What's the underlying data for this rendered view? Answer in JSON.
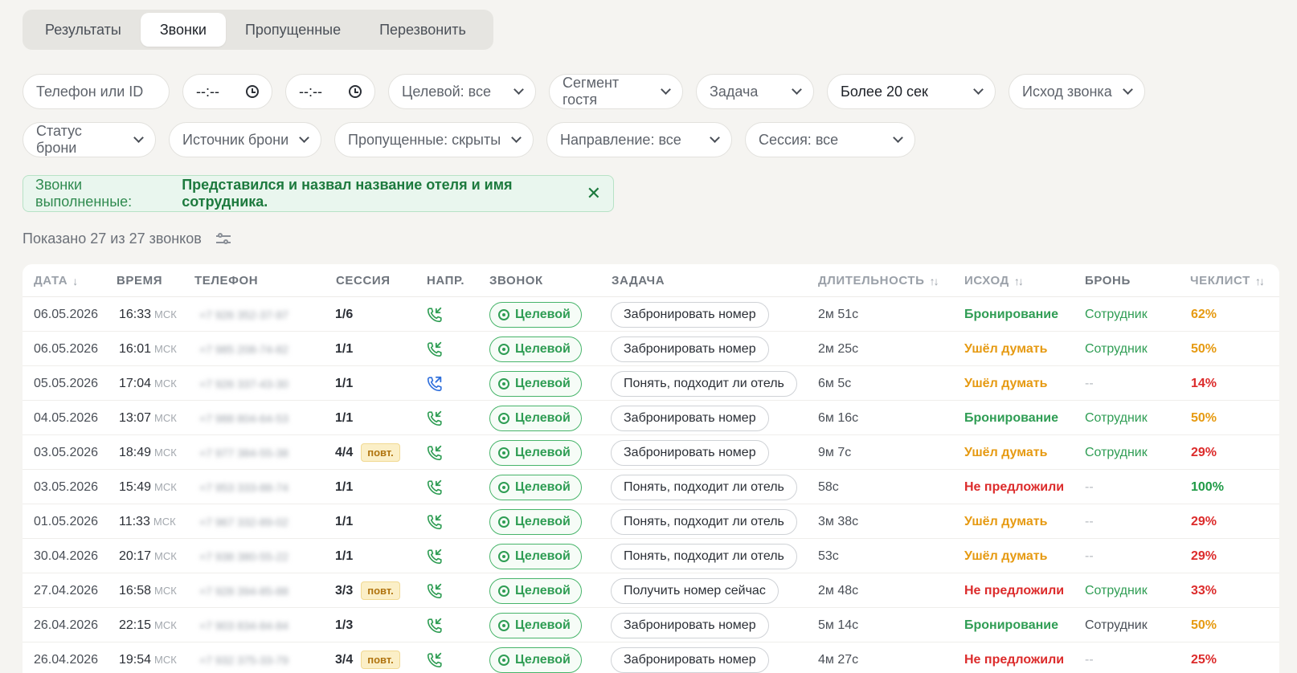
{
  "tabs": [
    "Результаты",
    "Звонки",
    "Пропущенные",
    "Перезвонить"
  ],
  "active_tab": 1,
  "filters": {
    "phone_placeholder": "Телефон или ID",
    "time_from": "--:--",
    "time_to": "--:--",
    "target": "Целевой: все",
    "segment": "Сегмент гостя",
    "task": "Задача",
    "duration": "Более 20 сек",
    "outcome": "Исход звонка",
    "booking_status": "Статус брони",
    "booking_source": "Источник брони",
    "missed": "Пропущенные: скрыты",
    "direction": "Направление: все",
    "session": "Сессия: все"
  },
  "banner": {
    "label": "Звонки выполненные:",
    "value": "Представился и назвал название отеля и имя сотрудника.",
    "close": "✕"
  },
  "count_text": "Показано 27 из 27 звонков",
  "columns": {
    "date": "ДАТА",
    "time": "ВРЕМЯ",
    "phone": "ТЕЛЕФОН",
    "session": "СЕССИЯ",
    "dir": "НАПР.",
    "call": "ЗВОНОК",
    "task": "ЗАДАЧА",
    "duration": "ДЛИТЕЛЬНОСТЬ",
    "outcome": "ИСХОД",
    "booking": "БРОНЬ",
    "checklist": "ЧЕКЛИСТ"
  },
  "icons": {
    "sort_down": "↓",
    "sort_both": "↑↓",
    "incoming": "incoming-call-icon",
    "outgoing": "outgoing-call-icon"
  },
  "colors": {
    "green": "#2f9d54",
    "orange": "#e69a12",
    "red": "#dc2b2b",
    "incoming": "#2f9d54",
    "outgoing": "#2f6fdc"
  },
  "rows": [
    {
      "date": "06.05.2026",
      "time": "16:33",
      "tz": "МСК",
      "phone": "+7 926 352-37-97",
      "session": "1/6",
      "repeat": "",
      "dir": "in",
      "call": "Целевой",
      "task": "Забронировать номер",
      "duration": "2м 51с",
      "outcome": "Бронирование",
      "outcome_color": "green",
      "booking": "Сотрудник",
      "booking_color": "green",
      "checklist": "62%",
      "checklist_color": "orange"
    },
    {
      "date": "06.05.2026",
      "time": "16:01",
      "tz": "МСК",
      "phone": "+7 985 208-74-82",
      "session": "1/1",
      "repeat": "",
      "dir": "in",
      "call": "Целевой",
      "task": "Забронировать номер",
      "duration": "2м 25с",
      "outcome": "Ушёл думать",
      "outcome_color": "orange",
      "booking": "Сотрудник",
      "booking_color": "green",
      "checklist": "50%",
      "checklist_color": "orange"
    },
    {
      "date": "05.05.2026",
      "time": "17:04",
      "tz": "МСК",
      "phone": "+7 926 337-43-30",
      "session": "1/1",
      "repeat": "",
      "dir": "out",
      "call": "Целевой",
      "task": "Понять, подходит ли отель",
      "duration": "6м 5с",
      "outcome": "Ушёл думать",
      "outcome_color": "orange",
      "booking": "--",
      "booking_color": "dash",
      "checklist": "14%",
      "checklist_color": "red"
    },
    {
      "date": "04.05.2026",
      "time": "13:07",
      "tz": "МСК",
      "phone": "+7 988 804-64-53",
      "session": "1/1",
      "repeat": "",
      "dir": "in",
      "call": "Целевой",
      "task": "Забронировать номер",
      "duration": "6м 16с",
      "outcome": "Бронирование",
      "outcome_color": "green",
      "booking": "Сотрудник",
      "booking_color": "green",
      "checklist": "50%",
      "checklist_color": "orange"
    },
    {
      "date": "03.05.2026",
      "time": "18:49",
      "tz": "МСК",
      "phone": "+7 977 384-55-38",
      "session": "4/4",
      "repeat": "повт.",
      "dir": "in",
      "call": "Целевой",
      "task": "Забронировать номер",
      "duration": "9м 7с",
      "outcome": "Ушёл думать",
      "outcome_color": "orange",
      "booking": "Сотрудник",
      "booking_color": "green",
      "checklist": "29%",
      "checklist_color": "red"
    },
    {
      "date": "03.05.2026",
      "time": "15:49",
      "tz": "МСК",
      "phone": "+7 953 333-88-74",
      "session": "1/1",
      "repeat": "",
      "dir": "in",
      "call": "Целевой",
      "task": "Понять, подходит ли отель",
      "duration": "58с",
      "outcome": "Не предложили",
      "outcome_color": "red",
      "booking": "--",
      "booking_color": "dash",
      "checklist": "100%",
      "checklist_color": "dgreen"
    },
    {
      "date": "01.05.2026",
      "time": "11:33",
      "tz": "МСК",
      "phone": "+7 967 332-89-02",
      "session": "1/1",
      "repeat": "",
      "dir": "in",
      "call": "Целевой",
      "task": "Понять, подходит ли отель",
      "duration": "3м 38с",
      "outcome": "Ушёл думать",
      "outcome_color": "orange",
      "booking": "--",
      "booking_color": "dash",
      "checklist": "29%",
      "checklist_color": "red"
    },
    {
      "date": "30.04.2026",
      "time": "20:17",
      "tz": "МСК",
      "phone": "+7 938 380-55-22",
      "session": "1/1",
      "repeat": "",
      "dir": "in",
      "call": "Целевой",
      "task": "Понять, подходит ли отель",
      "duration": "53с",
      "outcome": "Ушёл думать",
      "outcome_color": "orange",
      "booking": "--",
      "booking_color": "dash",
      "checklist": "29%",
      "checklist_color": "red"
    },
    {
      "date": "27.04.2026",
      "time": "16:58",
      "tz": "МСК",
      "phone": "+7 928 394-85-88",
      "session": "3/3",
      "repeat": "повт.",
      "dir": "in",
      "call": "Целевой",
      "task": "Получить номер сейчас",
      "duration": "2м 48с",
      "outcome": "Не предложили",
      "outcome_color": "red",
      "booking": "Сотрудник",
      "booking_color": "green",
      "checklist": "33%",
      "checklist_color": "red"
    },
    {
      "date": "26.04.2026",
      "time": "22:15",
      "tz": "МСК",
      "phone": "+7 903 834-84-84",
      "session": "1/3",
      "repeat": "",
      "dir": "in",
      "call": "Целевой",
      "task": "Забронировать номер",
      "duration": "5м 14с",
      "outcome": "Бронирование",
      "outcome_color": "green",
      "booking": "Сотрудник",
      "booking_color": "gray",
      "checklist": "50%",
      "checklist_color": "orange"
    },
    {
      "date": "26.04.2026",
      "time": "19:54",
      "tz": "МСК",
      "phone": "+7 932 375-33-79",
      "session": "3/4",
      "repeat": "повт.",
      "dir": "in",
      "call": "Целевой",
      "task": "Забронировать номер",
      "duration": "4м 27с",
      "outcome": "Не предложили",
      "outcome_color": "red",
      "booking": "--",
      "booking_color": "dash",
      "checklist": "25%",
      "checklist_color": "red"
    }
  ]
}
